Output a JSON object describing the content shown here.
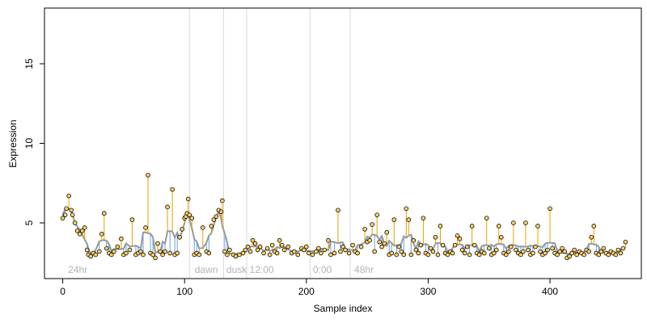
{
  "chart_data": {
    "type": "scatter",
    "xlabel": "Sample index",
    "ylabel": "Expression",
    "xlim": [
      -15,
      475
    ],
    "ylim": [
      1.5,
      18.5
    ],
    "x_ticks": [
      0,
      100,
      200,
      300,
      400
    ],
    "y_ticks": [
      5,
      10,
      15
    ],
    "phase_boundaries": [
      104,
      132,
      151,
      203,
      236
    ],
    "phase_labels": [
      {
        "x": 3,
        "label": "24hr"
      },
      {
        "x": 107,
        "label": "dawn"
      },
      {
        "x": 133,
        "label": "dusk"
      },
      {
        "x": 152,
        "label": "12:00"
      },
      {
        "x": 204,
        "label": "0:00"
      },
      {
        "x": 238,
        "label": "48hr"
      }
    ],
    "colors": {
      "points_fill": "#ffd26a",
      "points_stroke": "#000000",
      "upward_stem": "#e69f00",
      "downward_stem": "#6f9fd8",
      "smooth_line": "#999999",
      "phase_line": "#d9d9d9",
      "axis": "#000000"
    },
    "points": [
      [
        0,
        5.3
      ],
      [
        2,
        5.5
      ],
      [
        3,
        5.9
      ],
      [
        5,
        6.7
      ],
      [
        7,
        5.8
      ],
      [
        8,
        5.5
      ],
      [
        10,
        5.0
      ],
      [
        12,
        4.5
      ],
      [
        14,
        4.3
      ],
      [
        16,
        4.5
      ],
      [
        18,
        4.7
      ],
      [
        20,
        3.3
      ],
      [
        21,
        3.0
      ],
      [
        23,
        2.9
      ],
      [
        25,
        3.1
      ],
      [
        27,
        3.0
      ],
      [
        30,
        3.2
      ],
      [
        32,
        4.3
      ],
      [
        34,
        5.6
      ],
      [
        36,
        3.4
      ],
      [
        38,
        3.1
      ],
      [
        40,
        3.0
      ],
      [
        42,
        3.2
      ],
      [
        45,
        3.5
      ],
      [
        48,
        4.0
      ],
      [
        50,
        3.0
      ],
      [
        52,
        3.1
      ],
      [
        55,
        3.3
      ],
      [
        57,
        5.2
      ],
      [
        60,
        3.0
      ],
      [
        62,
        3.1
      ],
      [
        64,
        3.2
      ],
      [
        66,
        3.0
      ],
      [
        68,
        4.7
      ],
      [
        70,
        8.0
      ],
      [
        72,
        3.1
      ],
      [
        74,
        3.0
      ],
      [
        76,
        2.8
      ],
      [
        78,
        3.7
      ],
      [
        80,
        3.2
      ],
      [
        82,
        3.0
      ],
      [
        84,
        3.2
      ],
      [
        86,
        6.0
      ],
      [
        88,
        3.1
      ],
      [
        90,
        7.1
      ],
      [
        92,
        3.0
      ],
      [
        94,
        3.1
      ],
      [
        96,
        4.1
      ],
      [
        98,
        4.6
      ],
      [
        100,
        5.3
      ],
      [
        101,
        5.4
      ],
      [
        102,
        5.6
      ],
      [
        103,
        6.5
      ],
      [
        104,
        5.5
      ],
      [
        106,
        5.3
      ],
      [
        108,
        3.0
      ],
      [
        110,
        3.1
      ],
      [
        112,
        3.0
      ],
      [
        115,
        4.7
      ],
      [
        118,
        3.2
      ],
      [
        120,
        3.1
      ],
      [
        122,
        4.8
      ],
      [
        124,
        5.2
      ],
      [
        126,
        5.4
      ],
      [
        128,
        5.8
      ],
      [
        130,
        5.7
      ],
      [
        131,
        6.4
      ],
      [
        133,
        3.2
      ],
      [
        135,
        3.0
      ],
      [
        137,
        3.3
      ],
      [
        140,
        3.0
      ],
      [
        142,
        2.9
      ],
      [
        145,
        3.0
      ],
      [
        148,
        3.1
      ],
      [
        150,
        3.3
      ],
      [
        152,
        3.5
      ],
      [
        154,
        3.2
      ],
      [
        156,
        3.9
      ],
      [
        158,
        3.7
      ],
      [
        160,
        3.3
      ],
      [
        162,
        3.5
      ],
      [
        165,
        3.1
      ],
      [
        168,
        3.4
      ],
      [
        170,
        3.0
      ],
      [
        172,
        3.6
      ],
      [
        174,
        3.2
      ],
      [
        176,
        3.1
      ],
      [
        178,
        3.9
      ],
      [
        180,
        3.6
      ],
      [
        182,
        3.3
      ],
      [
        185,
        3.5
      ],
      [
        188,
        3.1
      ],
      [
        190,
        3.2
      ],
      [
        193,
        3.0
      ],
      [
        196,
        3.4
      ],
      [
        198,
        3.3
      ],
      [
        200,
        3.5
      ],
      [
        202,
        3.1
      ],
      [
        205,
        3.0
      ],
      [
        208,
        3.2
      ],
      [
        210,
        3.4
      ],
      [
        212,
        3.1
      ],
      [
        215,
        3.3
      ],
      [
        218,
        3.9
      ],
      [
        220,
        3.0
      ],
      [
        223,
        3.1
      ],
      [
        226,
        5.8
      ],
      [
        228,
        3.2
      ],
      [
        230,
        3.5
      ],
      [
        232,
        3.3
      ],
      [
        235,
        3.1
      ],
      [
        238,
        3.6
      ],
      [
        240,
        3.2
      ],
      [
        242,
        3.1
      ],
      [
        245,
        3.5
      ],
      [
        248,
        4.6
      ],
      [
        250,
        3.8
      ],
      [
        252,
        3.9
      ],
      [
        254,
        4.9
      ],
      [
        256,
        3.2
      ],
      [
        258,
        5.5
      ],
      [
        260,
        3.8
      ],
      [
        262,
        3.5
      ],
      [
        264,
        3.7
      ],
      [
        266,
        4.4
      ],
      [
        268,
        3.0
      ],
      [
        270,
        3.1
      ],
      [
        272,
        5.2
      ],
      [
        274,
        3.0
      ],
      [
        276,
        3.5
      ],
      [
        278,
        3.2
      ],
      [
        280,
        3.0
      ],
      [
        282,
        5.9
      ],
      [
        284,
        5.2
      ],
      [
        286,
        3.0
      ],
      [
        288,
        3.9
      ],
      [
        290,
        3.3
      ],
      [
        292,
        3.1
      ],
      [
        294,
        3.6
      ],
      [
        296,
        5.3
      ],
      [
        298,
        3.1
      ],
      [
        300,
        3.0
      ],
      [
        302,
        3.4
      ],
      [
        304,
        3.2
      ],
      [
        306,
        4.1
      ],
      [
        308,
        3.0
      ],
      [
        310,
        4.8
      ],
      [
        312,
        3.6
      ],
      [
        314,
        3.1
      ],
      [
        316,
        3.0
      ],
      [
        318,
        3.2
      ],
      [
        320,
        3.1
      ],
      [
        322,
        3.6
      ],
      [
        324,
        4.2
      ],
      [
        326,
        4.0
      ],
      [
        328,
        3.3
      ],
      [
        330,
        3.1
      ],
      [
        332,
        3.5
      ],
      [
        334,
        3.0
      ],
      [
        336,
        4.8
      ],
      [
        338,
        3.6
      ],
      [
        340,
        3.1
      ],
      [
        342,
        3.0
      ],
      [
        344,
        3.2
      ],
      [
        346,
        3.1
      ],
      [
        348,
        5.3
      ],
      [
        350,
        3.4
      ],
      [
        352,
        3.0
      ],
      [
        354,
        3.1
      ],
      [
        356,
        3.3
      ],
      [
        358,
        4.8
      ],
      [
        360,
        4.1
      ],
      [
        362,
        3.1
      ],
      [
        364,
        3.0
      ],
      [
        366,
        3.2
      ],
      [
        368,
        3.5
      ],
      [
        370,
        5.0
      ],
      [
        372,
        3.3
      ],
      [
        374,
        3.1
      ],
      [
        376,
        3.0
      ],
      [
        378,
        3.2
      ],
      [
        380,
        5.0
      ],
      [
        382,
        3.3
      ],
      [
        384,
        3.0
      ],
      [
        386,
        3.1
      ],
      [
        388,
        3.5
      ],
      [
        390,
        4.8
      ],
      [
        392,
        3.2
      ],
      [
        394,
        3.0
      ],
      [
        396,
        3.1
      ],
      [
        398,
        3.3
      ],
      [
        400,
        5.9
      ],
      [
        402,
        3.4
      ],
      [
        404,
        3.1
      ],
      [
        406,
        3.0
      ],
      [
        408,
        3.2
      ],
      [
        410,
        3.4
      ],
      [
        412,
        3.2
      ],
      [
        414,
        2.8
      ],
      [
        416,
        2.9
      ],
      [
        418,
        3.1
      ],
      [
        420,
        3.3
      ],
      [
        422,
        3.0
      ],
      [
        424,
        3.2
      ],
      [
        426,
        3.1
      ],
      [
        428,
        3.0
      ],
      [
        430,
        3.3
      ],
      [
        432,
        3.2
      ],
      [
        434,
        4.1
      ],
      [
        436,
        4.8
      ],
      [
        438,
        3.1
      ],
      [
        440,
        3.0
      ],
      [
        442,
        3.2
      ],
      [
        444,
        3.4
      ],
      [
        446,
        3.1
      ],
      [
        448,
        3.0
      ],
      [
        450,
        3.2
      ],
      [
        452,
        3.1
      ],
      [
        454,
        3.0
      ],
      [
        456,
        3.3
      ],
      [
        458,
        3.1
      ],
      [
        460,
        3.4
      ],
      [
        462,
        3.8
      ]
    ]
  }
}
